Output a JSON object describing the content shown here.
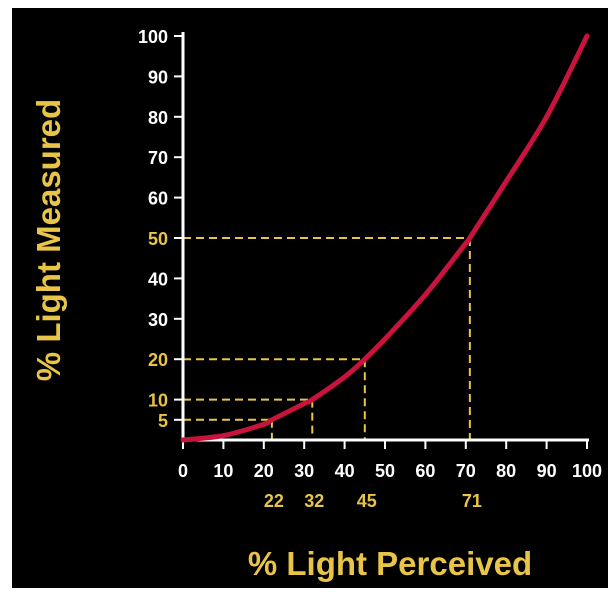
{
  "chart_data": {
    "type": "line",
    "title": "",
    "xlabel": "% Light Perceived",
    "ylabel": "% Light Measured",
    "xlim": [
      0,
      100
    ],
    "ylim": [
      0,
      100
    ],
    "x_ticks": [
      "0",
      "10",
      "20",
      "30",
      "40",
      "50",
      "60",
      "70",
      "80",
      "90",
      "100"
    ],
    "y_ticks": [
      "100",
      "90",
      "80",
      "70",
      "60",
      "50",
      "40",
      "30",
      "20",
      "10",
      "5"
    ],
    "highlighted_y_ticks": [
      "50",
      "20",
      "10",
      "5"
    ],
    "series": [
      {
        "color": "#c8143c",
        "x": [
          0,
          10,
          20,
          22,
          30,
          32,
          40,
          45,
          50,
          60,
          70,
          71,
          80,
          90,
          100
        ],
        "y": [
          0,
          1.1,
          3.9,
          5,
          9,
          10,
          15.6,
          20,
          25,
          36,
          48.7,
          50,
          64,
          80,
          100
        ]
      }
    ],
    "reference_lines": [
      {
        "x": 22,
        "y": 5,
        "x_label": "22"
      },
      {
        "x": 32,
        "y": 10,
        "x_label": "32"
      },
      {
        "x": 45,
        "y": 20,
        "x_label": "45"
      },
      {
        "x": 71,
        "y": 50,
        "x_label": "71"
      }
    ],
    "grid": false,
    "colors": {
      "background": "#000000",
      "axis": "#ffffff",
      "curve": "#c8143c",
      "reference": "#e8c547",
      "highlight_text": "#e8c547"
    }
  }
}
